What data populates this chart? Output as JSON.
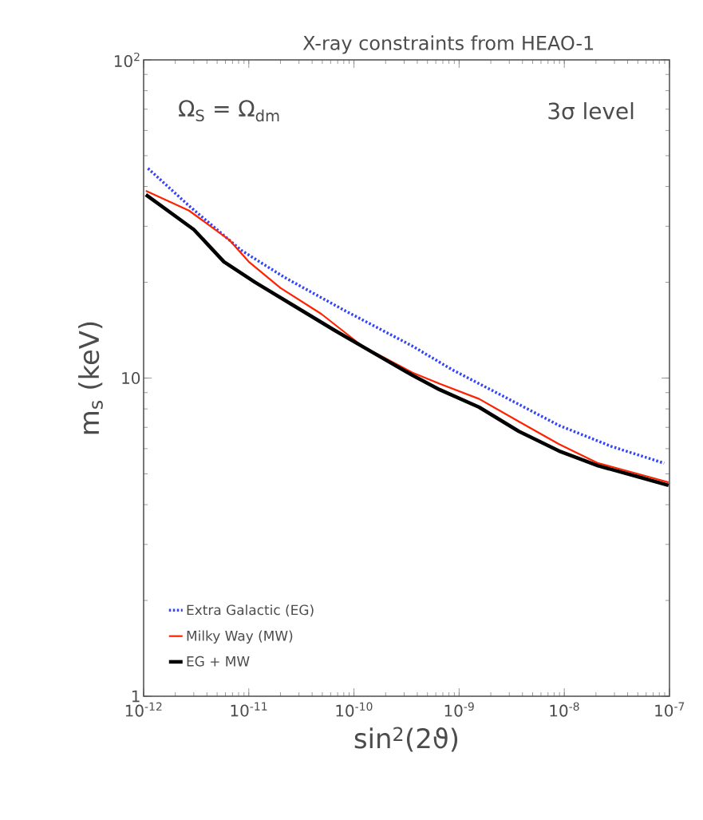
{
  "chart_data": {
    "type": "line",
    "title": "X-ray constraints from HEAO-1",
    "xlabel": "sin$^{2}$(2ϑ)",
    "ylabel": "m$_{s}$ (keV)",
    "annotations": [
      "Ω$_{S}$ = Ω$_{dm}$",
      "3σ level"
    ],
    "log": "xy",
    "xlim": [
      1e-12,
      1e-07
    ],
    "ylim": [
      1,
      100
    ],
    "xticks": [
      {
        "value": 1e-12,
        "label": "10$^{-12}$"
      },
      {
        "value": 1e-11,
        "label": "10$^{-11}$"
      },
      {
        "value": 1e-10,
        "label": "10$^{-10}$"
      },
      {
        "value": 1e-09,
        "label": "10$^{-9}$"
      },
      {
        "value": 1e-08,
        "label": "10$^{-8}$"
      },
      {
        "value": 1e-07,
        "label": "10$^{-7}$"
      }
    ],
    "yticks": [
      1,
      10,
      {
        "value": 100,
        "label": "10$^{2}$"
      }
    ],
    "legend": "bottom left",
    "series": [
      {
        "name": "Extra Galactic (EG)",
        "color": "#3344ff",
        "line_style": "dotted",
        "x": [
          1.1e-12,
          2.7e-12,
          8.5e-12,
          2.2e-11,
          7.9e-11,
          3.6e-10,
          8.7e-10,
          2.75e-09,
          8.9e-09,
          2.8e-08,
          8.9e-08
        ],
        "values": [
          45.6,
          34.8,
          25.2,
          20.7,
          16.4,
          12.6,
          10.6,
          8.7,
          7.1,
          6.1,
          5.4
        ]
      },
      {
        "name": "Milky Way (MW)",
        "color": "#ff2200",
        "line_style": "solid",
        "x": [
          1.05e-12,
          2.7e-12,
          6.5e-12,
          1e-11,
          2e-11,
          4.9e-11,
          1.2e-10,
          3.6e-10,
          6.5e-10,
          1.55e-09,
          3.7e-09,
          8.9e-09,
          2.1e-08,
          5e-08,
          9.8e-08
        ],
        "values": [
          38.8,
          33.6,
          27.2,
          23.2,
          19.2,
          15.9,
          12.6,
          10.4,
          9.6,
          8.6,
          7.3,
          6.2,
          5.4,
          5.0,
          4.7
        ]
      },
      {
        "name": "EG + MW",
        "color": "#000000",
        "line_style": "solid",
        "x": [
          1.05e-12,
          3e-12,
          5.8e-12,
          1.15e-11,
          2.75e-11,
          6.6e-11,
          1.6e-10,
          3.6e-10,
          6.5e-10,
          1.55e-09,
          3.7e-09,
          8.9e-09,
          2.1e-08,
          5e-08,
          9.8e-08
        ],
        "values": [
          37.7,
          29.3,
          23.2,
          20.0,
          16.8,
          14.1,
          11.9,
          10.2,
          9.2,
          8.1,
          6.8,
          5.9,
          5.3,
          4.9,
          4.6
        ]
      }
    ]
  }
}
